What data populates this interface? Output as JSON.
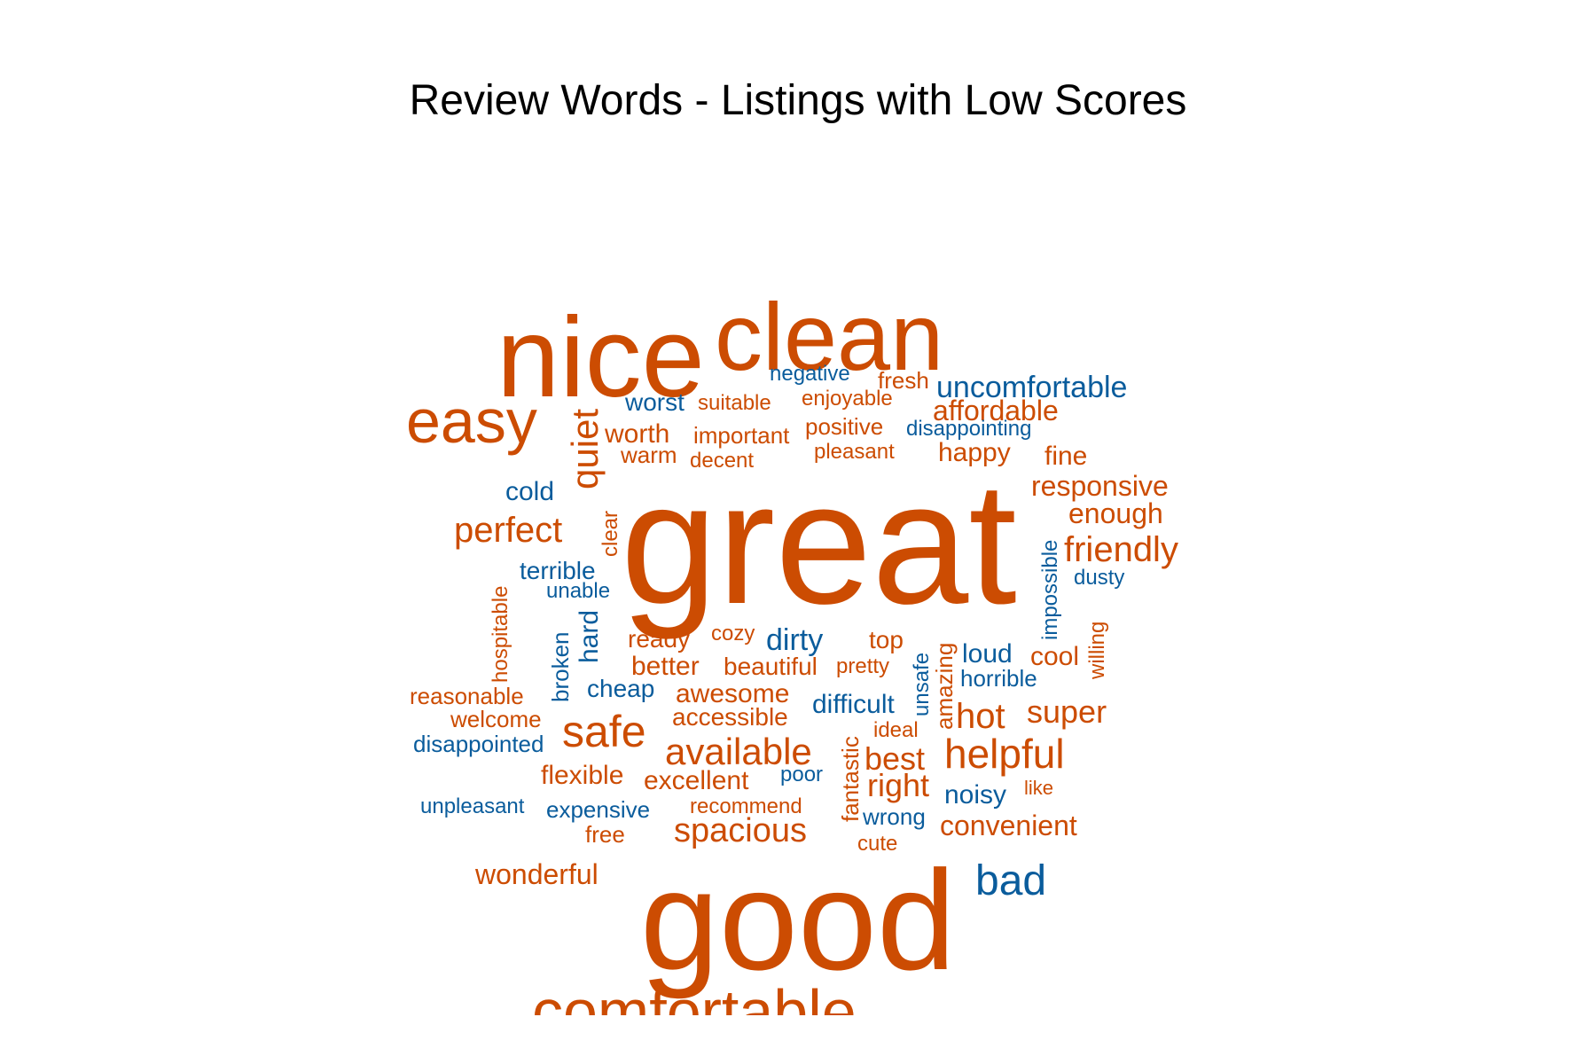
{
  "chart_data": {
    "type": "wordcloud",
    "title": "Review Words - Listings with Low Scores",
    "colors": {
      "positive": "#CC4C02",
      "negative": "#0A5C9C"
    },
    "words": [
      {
        "text": "great",
        "sentiment": "positive",
        "rotated": false
      },
      {
        "text": "good",
        "sentiment": "positive",
        "rotated": false
      },
      {
        "text": "nice",
        "sentiment": "positive",
        "rotated": false
      },
      {
        "text": "clean",
        "sentiment": "positive",
        "rotated": false
      },
      {
        "text": "comfortable",
        "sentiment": "positive",
        "rotated": false
      },
      {
        "text": "easy",
        "sentiment": "positive",
        "rotated": false
      },
      {
        "text": "quiet",
        "sentiment": "positive",
        "rotated": true
      },
      {
        "text": "helpful",
        "sentiment": "positive",
        "rotated": false
      },
      {
        "text": "safe",
        "sentiment": "positive",
        "rotated": false
      },
      {
        "text": "available",
        "sentiment": "positive",
        "rotated": false
      },
      {
        "text": "bad",
        "sentiment": "negative",
        "rotated": false
      },
      {
        "text": "perfect",
        "sentiment": "positive",
        "rotated": false
      },
      {
        "text": "friendly",
        "sentiment": "positive",
        "rotated": false
      },
      {
        "text": "spacious",
        "sentiment": "positive",
        "rotated": false
      },
      {
        "text": "hot",
        "sentiment": "positive",
        "rotated": false
      },
      {
        "text": "super",
        "sentiment": "positive",
        "rotated": false
      },
      {
        "text": "best",
        "sentiment": "positive",
        "rotated": false
      },
      {
        "text": "right",
        "sentiment": "positive",
        "rotated": false
      },
      {
        "text": "uncomfortable",
        "sentiment": "negative",
        "rotated": false
      },
      {
        "text": "responsive",
        "sentiment": "positive",
        "rotated": false
      },
      {
        "text": "convenient",
        "sentiment": "positive",
        "rotated": false
      },
      {
        "text": "dirty",
        "sentiment": "negative",
        "rotated": false
      },
      {
        "text": "wonderful",
        "sentiment": "positive",
        "rotated": false
      },
      {
        "text": "affordable",
        "sentiment": "positive",
        "rotated": false
      },
      {
        "text": "enough",
        "sentiment": "positive",
        "rotated": false
      },
      {
        "text": "happy",
        "sentiment": "positive",
        "rotated": false
      },
      {
        "text": "fine",
        "sentiment": "positive",
        "rotated": false
      },
      {
        "text": "worst",
        "sentiment": "negative",
        "rotated": false
      },
      {
        "text": "cold",
        "sentiment": "negative",
        "rotated": false
      },
      {
        "text": "worth",
        "sentiment": "positive",
        "rotated": false
      },
      {
        "text": "terrible",
        "sentiment": "negative",
        "rotated": false
      },
      {
        "text": "better",
        "sentiment": "positive",
        "rotated": false
      },
      {
        "text": "cheap",
        "sentiment": "negative",
        "rotated": false
      },
      {
        "text": "awesome",
        "sentiment": "positive",
        "rotated": false
      },
      {
        "text": "accessible",
        "sentiment": "positive",
        "rotated": false
      },
      {
        "text": "difficult",
        "sentiment": "negative",
        "rotated": false
      },
      {
        "text": "loud",
        "sentiment": "negative",
        "rotated": false
      },
      {
        "text": "cool",
        "sentiment": "positive",
        "rotated": false
      },
      {
        "text": "noisy",
        "sentiment": "negative",
        "rotated": false
      },
      {
        "text": "excellent",
        "sentiment": "positive",
        "rotated": false
      },
      {
        "text": "flexible",
        "sentiment": "positive",
        "rotated": false
      },
      {
        "text": "expensive",
        "sentiment": "negative",
        "rotated": false
      },
      {
        "text": "beautiful",
        "sentiment": "positive",
        "rotated": false
      },
      {
        "text": "ready",
        "sentiment": "positive",
        "rotated": false
      },
      {
        "text": "top",
        "sentiment": "positive",
        "rotated": false
      },
      {
        "text": "hard",
        "sentiment": "negative",
        "rotated": true
      },
      {
        "text": "horrible",
        "sentiment": "negative",
        "rotated": false
      },
      {
        "text": "warm",
        "sentiment": "positive",
        "rotated": false
      },
      {
        "text": "important",
        "sentiment": "positive",
        "rotated": false
      },
      {
        "text": "positive",
        "sentiment": "positive",
        "rotated": false
      },
      {
        "text": "suitable",
        "sentiment": "positive",
        "rotated": false
      },
      {
        "text": "negative",
        "sentiment": "negative",
        "rotated": false
      },
      {
        "text": "enjoyable",
        "sentiment": "positive",
        "rotated": false
      },
      {
        "text": "fresh",
        "sentiment": "positive",
        "rotated": false
      },
      {
        "text": "pleasant",
        "sentiment": "positive",
        "rotated": false
      },
      {
        "text": "disappointing",
        "sentiment": "negative",
        "rotated": false
      },
      {
        "text": "decent",
        "sentiment": "positive",
        "rotated": false
      },
      {
        "text": "clear",
        "sentiment": "positive",
        "rotated": true
      },
      {
        "text": "impossible",
        "sentiment": "negative",
        "rotated": true
      },
      {
        "text": "dusty",
        "sentiment": "negative",
        "rotated": false
      },
      {
        "text": "unable",
        "sentiment": "negative",
        "rotated": false
      },
      {
        "text": "hospitable",
        "sentiment": "positive",
        "rotated": true
      },
      {
        "text": "broken",
        "sentiment": "negative",
        "rotated": true
      },
      {
        "text": "cozy",
        "sentiment": "positive",
        "rotated": false
      },
      {
        "text": "pretty",
        "sentiment": "positive",
        "rotated": false
      },
      {
        "text": "unsafe",
        "sentiment": "negative",
        "rotated": true
      },
      {
        "text": "amazing",
        "sentiment": "positive",
        "rotated": true
      },
      {
        "text": "willing",
        "sentiment": "positive",
        "rotated": true
      },
      {
        "text": "reasonable",
        "sentiment": "positive",
        "rotated": false
      },
      {
        "text": "welcome",
        "sentiment": "positive",
        "rotated": false
      },
      {
        "text": "disappointed",
        "sentiment": "negative",
        "rotated": false
      },
      {
        "text": "ideal",
        "sentiment": "positive",
        "rotated": false
      },
      {
        "text": "fantastic",
        "sentiment": "positive",
        "rotated": true
      },
      {
        "text": "poor",
        "sentiment": "negative",
        "rotated": false
      },
      {
        "text": "like",
        "sentiment": "positive",
        "rotated": false
      },
      {
        "text": "unpleasant",
        "sentiment": "negative",
        "rotated": false
      },
      {
        "text": "recommend",
        "sentiment": "positive",
        "rotated": false
      },
      {
        "text": "wrong",
        "sentiment": "negative",
        "rotated": false
      },
      {
        "text": "free",
        "sentiment": "positive",
        "rotated": false
      },
      {
        "text": "cute",
        "sentiment": "positive",
        "rotated": false
      }
    ]
  }
}
